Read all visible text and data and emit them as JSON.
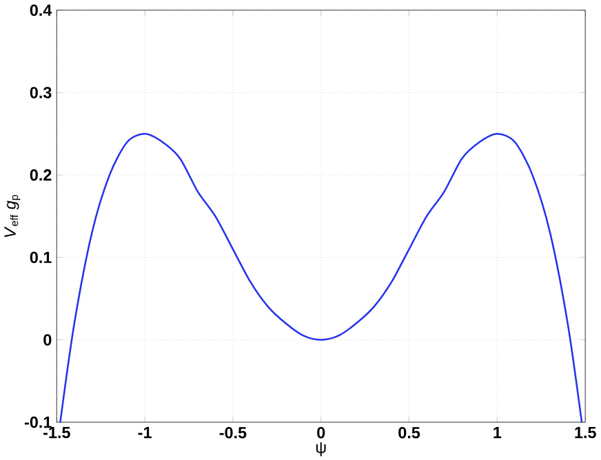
{
  "chart_data": {
    "type": "line",
    "xlabel": "ψ",
    "ylabel": "*V*$_{eff}$  *g*$_{p}$",
    "x": [
      -1.48,
      -1.4,
      -1.3,
      -1.2,
      -1.1,
      -1.0,
      -0.9,
      -0.8,
      -0.7,
      -0.6,
      -0.5,
      -0.4,
      -0.3,
      -0.2,
      -0.1,
      0,
      0.1,
      0.2,
      0.3,
      0.4,
      0.5,
      0.6,
      0.7,
      0.8,
      0.9,
      1.0,
      1.1,
      1.2,
      1.3,
      1.4,
      1.48
    ],
    "series": [
      {
        "color": "#2233ee",
        "values": [
          -0.1,
          0.02,
          0.13,
          0.2,
          0.24,
          0.25,
          0.24,
          0.22,
          0.18,
          0.15,
          0.11,
          0.07,
          0.04,
          0.02,
          0.005,
          0,
          0.005,
          0.02,
          0.04,
          0.07,
          0.11,
          0.15,
          0.18,
          0.22,
          0.24,
          0.25,
          0.24,
          0.2,
          0.13,
          0.02,
          -0.1
        ]
      }
    ],
    "xlim": [
      -1.5,
      1.5
    ],
    "ylim": [
      -0.1,
      0.4
    ],
    "xticks": [
      {
        "value": -1.5,
        "label": "-1.5"
      },
      {
        "value": -1,
        "label": "-1"
      },
      {
        "value": -0.5,
        "label": "-0.5"
      },
      0,
      0.5,
      1,
      1.5
    ],
    "yticks": [
      {
        "value": -0.1,
        "label": "-0.1"
      },
      0,
      0.1,
      0.2,
      0.3,
      0.4
    ],
    "grid": true,
    "marker": "none",
    "line_style": "solid"
  }
}
